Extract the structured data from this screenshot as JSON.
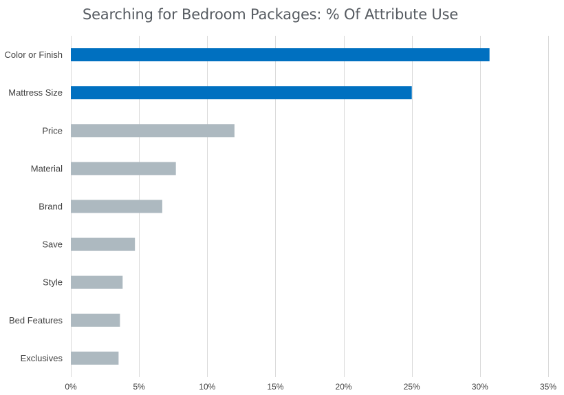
{
  "chart_data": {
    "type": "bar",
    "orientation": "horizontal",
    "title": "Searching for Bedroom Packages: % Of Attribute Use",
    "xlabel": "",
    "ylabel": "",
    "categories": [
      "Color or Finish",
      "Mattress Size",
      "Price",
      "Material",
      "Brand",
      "Save",
      "Style",
      "Bed Features",
      "Exclusives"
    ],
    "values": [
      30.7,
      25.0,
      12.0,
      7.7,
      6.7,
      4.7,
      3.8,
      3.6,
      3.5
    ],
    "value_unit": "%",
    "xlim": [
      0,
      35
    ],
    "ticks": [
      0,
      5,
      10,
      15,
      20,
      25,
      30,
      35
    ],
    "tick_labels": [
      "0%",
      "5%",
      "10%",
      "15%",
      "20%",
      "25%",
      "30%",
      "35%"
    ],
    "grid": "vertical",
    "legend": "none",
    "colors": {
      "highlight": "#0070c0",
      "default": "#adb9c0",
      "grid": "#d9d9d9",
      "text": "#404040",
      "title": "#555a60"
    },
    "highlighted_categories": [
      "Color or Finish",
      "Mattress Size"
    ]
  }
}
